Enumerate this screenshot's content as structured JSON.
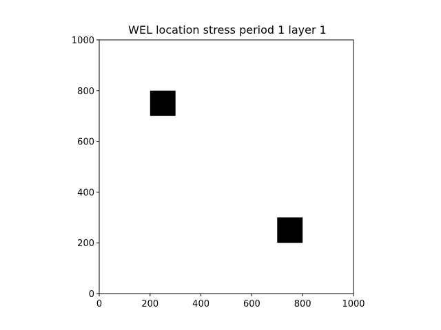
{
  "chart_data": {
    "type": "heatmap",
    "title": "WEL location stress period 1 layer 1",
    "xlabel": "",
    "ylabel": "",
    "xlim": [
      0,
      1000
    ],
    "ylim": [
      0,
      1000
    ],
    "x_ticks": [
      "0",
      "200",
      "400",
      "600",
      "800",
      "1000"
    ],
    "y_ticks": [
      "0",
      "200",
      "400",
      "600",
      "800",
      "1000"
    ],
    "grid": false,
    "cells": [
      {
        "x0": 200,
        "x1": 300,
        "y0": 700,
        "y1": 800,
        "value": 1
      },
      {
        "x0": 700,
        "x1": 800,
        "y0": 200,
        "y1": 300,
        "value": 1
      }
    ],
    "colors": {
      "cell": "#000000",
      "background": "#ffffff",
      "axes": "#000000"
    }
  }
}
